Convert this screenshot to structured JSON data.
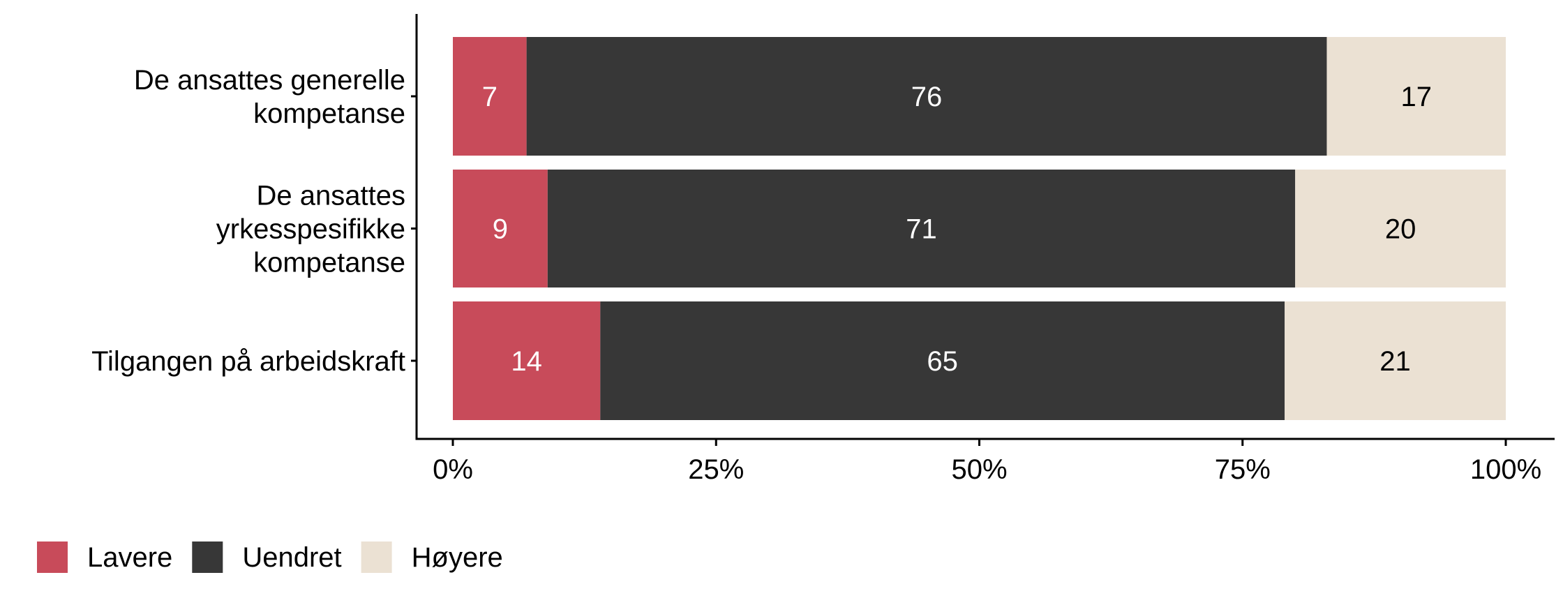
{
  "chart_data": {
    "type": "bar",
    "orientation": "horizontal",
    "stacked": true,
    "normalized": true,
    "categories": [
      [
        "De ansattes generelle",
        "kompetanse"
      ],
      [
        "De ansattes",
        "yrkesspesifikke",
        "kompetanse"
      ],
      [
        "Tilgangen på arbeidskraft"
      ]
    ],
    "series": [
      {
        "name": "Lavere",
        "color": "#C84B5A",
        "label_color": "#FFFFFF",
        "values": [
          7,
          9,
          14
        ]
      },
      {
        "name": "Uendret",
        "color": "#373737",
        "label_color": "#FFFFFF",
        "values": [
          76,
          71,
          65
        ]
      },
      {
        "name": "Høyere",
        "color": "#EBE1D3",
        "label_color": "#000000",
        "values": [
          17,
          20,
          21
        ]
      }
    ],
    "x_ticks": [
      "0%",
      "25%",
      "50%",
      "75%",
      "100%"
    ],
    "xlim": [
      0,
      100
    ],
    "xlabel": "",
    "ylabel": "",
    "grid": false,
    "legend_position": "bottom-left"
  }
}
